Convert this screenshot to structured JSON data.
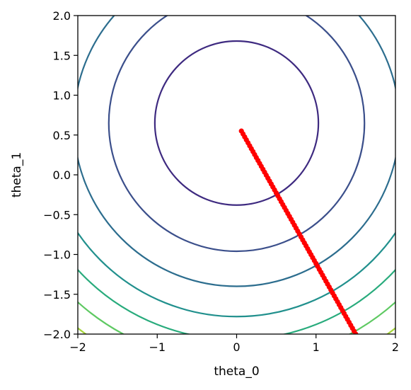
{
  "chart_data": {
    "type": "contour",
    "xlabel": "theta_0",
    "ylabel": "theta_1",
    "xlim": [
      -2,
      2
    ],
    "ylim": [
      -2,
      2
    ],
    "x_ticks": [
      "−2",
      "−1",
      "0",
      "1",
      "2"
    ],
    "y_ticks": [
      "−2.0",
      "−1.5",
      "−1.0",
      "−0.5",
      "0.0",
      "0.5",
      "1.0",
      "1.5",
      "2.0"
    ],
    "grid": false,
    "contours": {
      "center": [
        0,
        0.65
      ],
      "radii": [
        1.03,
        1.61,
        2.05,
        2.43,
        2.72,
        3.01,
        3.26
      ],
      "colors": [
        "#3e2a80",
        "#3b4f8b",
        "#2c6d8e",
        "#21908d",
        "#28ab7c",
        "#5ec962",
        "#a5d53b"
      ]
    },
    "path": {
      "color": "#ff0000",
      "start": [
        0.06,
        0.55
      ],
      "end": [
        1.5,
        -2.0
      ],
      "num_points": 70
    }
  }
}
